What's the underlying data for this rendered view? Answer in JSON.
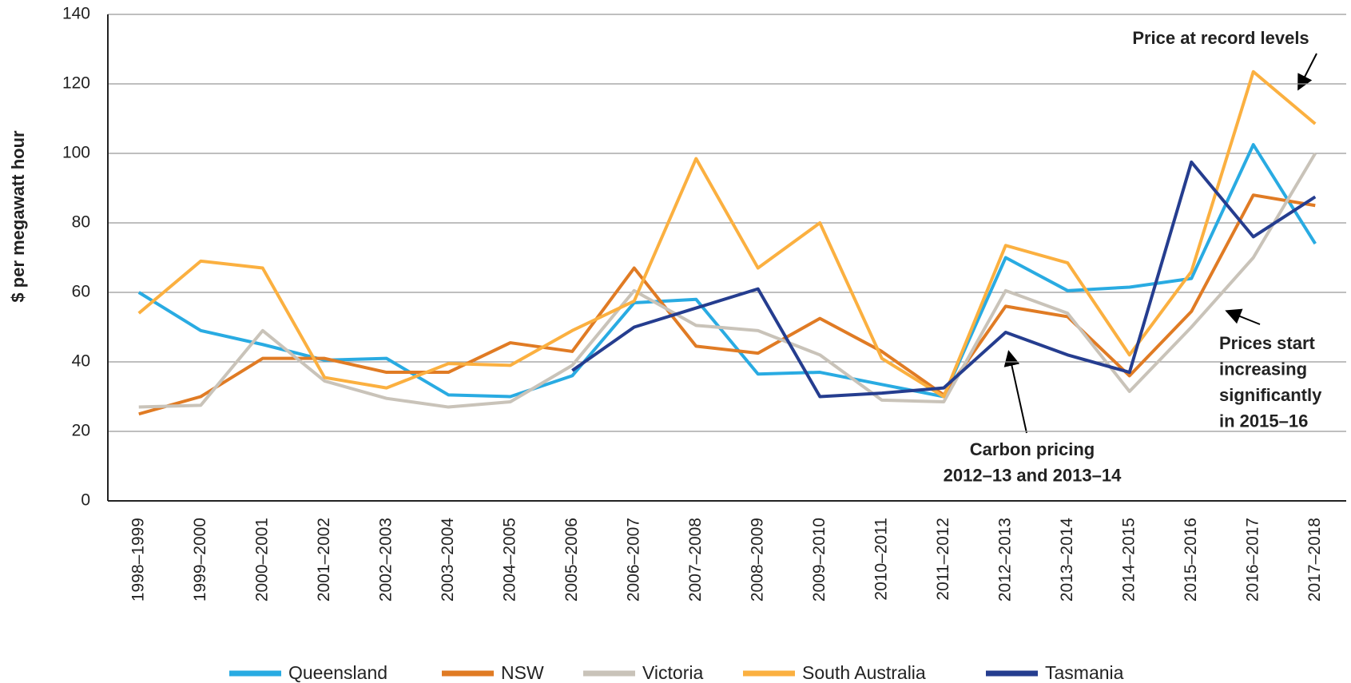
{
  "chart_data": {
    "type": "line",
    "y_label": "$ per megawatt hour",
    "categories": [
      "1998–1999",
      "1999–2000",
      "2000–2001",
      "2001–2002",
      "2002–2003",
      "2003–2004",
      "2004–2005",
      "2005–2006",
      "2006–2007",
      "2007–2008",
      "2008–2009",
      "2009–2010",
      "2010–2011",
      "2011–2012",
      "2012–2013",
      "2013–2014",
      "2014–2015",
      "2015–2016",
      "2016–2017",
      "2017–2018"
    ],
    "series": [
      {
        "name": "Queensland",
        "color": "#29abe2",
        "values": [
          60,
          49,
          45,
          40.5,
          41,
          30.5,
          30,
          36,
          57,
          58,
          36.5,
          37,
          33.5,
          30,
          70,
          60.5,
          61.5,
          64,
          102.5,
          74
        ]
      },
      {
        "name": "NSW",
        "color": "#e07b24",
        "values": [
          25,
          30,
          41,
          41,
          37,
          37,
          45.5,
          43,
          67,
          44.5,
          42.5,
          52.5,
          43,
          30.5,
          56,
          53,
          36,
          54.5,
          88,
          85
        ]
      },
      {
        "name": "Victoria",
        "color": "#c9c3b9",
        "values": [
          27,
          27.5,
          49,
          34.5,
          29.5,
          27,
          28.5,
          39,
          60.5,
          50.5,
          49,
          42,
          29,
          28.5,
          60.5,
          54,
          31.5,
          50,
          70,
          100
        ]
      },
      {
        "name": "South Australia",
        "color": "#fbb040",
        "values": [
          54,
          69,
          67,
          35.5,
          32.5,
          39.5,
          39,
          49,
          57.5,
          98.5,
          67,
          80,
          41,
          30,
          73.5,
          68.5,
          42,
          66,
          123.5,
          108.5
        ]
      },
      {
        "name": "Tasmania",
        "color": "#253d8f",
        "values": [
          null,
          null,
          null,
          null,
          null,
          null,
          null,
          37.5,
          50,
          55.5,
          61,
          30,
          31,
          32.5,
          48.5,
          42,
          37,
          97.5,
          76,
          87.5
        ]
      }
    ],
    "ylim": [
      0,
      140
    ],
    "yticks": [
      0,
      20,
      40,
      60,
      80,
      100,
      120,
      140
    ],
    "grid": true,
    "legend": "bottom",
    "annotations": [
      {
        "lines": [
          "Price at record levels"
        ]
      },
      {
        "lines": [
          "Prices start",
          "increasing",
          "significantly",
          "in 2015–16"
        ]
      },
      {
        "lines": [
          "Carbon pricing",
          "2012–13 and 2013–14"
        ]
      }
    ]
  }
}
